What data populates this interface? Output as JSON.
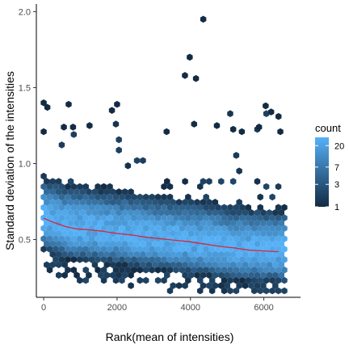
{
  "chart_data": {
    "type": "hexbin",
    "xlabel": "Rank(mean of intensities)",
    "ylabel": "Standard deviation of the intensities",
    "xlim": [
      -200,
      7000
    ],
    "ylim": [
      0.12,
      2.05
    ],
    "x_ticks": [
      {
        "value": 0,
        "label": "0"
      },
      {
        "value": 2000,
        "label": "2000"
      },
      {
        "value": 4000,
        "label": "4000"
      },
      {
        "value": 6000,
        "label": "6000"
      }
    ],
    "y_ticks": [
      {
        "value": 0.5,
        "label": "0.5"
      },
      {
        "value": 1.0,
        "label": "1.0"
      },
      {
        "value": 1.5,
        "label": "1.5"
      },
      {
        "value": 2.0,
        "label": "2.0"
      }
    ],
    "grid": false,
    "x_range_of_data": [
      0,
      6600
    ],
    "legend": {
      "title": "count",
      "placement": "right",
      "scale": "log",
      "low_color": "#132b43",
      "high_color": "#56b1f7",
      "breaks": [
        {
          "value": 20,
          "label": "20"
        },
        {
          "value": 7,
          "label": "7"
        },
        {
          "value": 3,
          "label": "3"
        },
        {
          "value": 1,
          "label": "1"
        }
      ],
      "range": [
        1,
        30
      ]
    },
    "trend_line": {
      "color": "#d7263d",
      "x": [
        0,
        300,
        600,
        900,
        1200,
        1600,
        2000,
        2400,
        2800,
        3200,
        3600,
        4000,
        4400,
        4800,
        5200,
        5600,
        6000,
        6400
      ],
      "y": [
        0.64,
        0.61,
        0.585,
        0.57,
        0.565,
        0.555,
        0.54,
        0.53,
        0.515,
        0.505,
        0.495,
        0.485,
        0.47,
        0.455,
        0.445,
        0.43,
        0.425,
        0.42
      ]
    },
    "outliers": [
      {
        "x": 4350,
        "y": 1.95
      },
      {
        "x": 3980,
        "y": 1.7
      },
      {
        "x": 3850,
        "y": 1.58
      },
      {
        "x": 4150,
        "y": 1.56
      },
      {
        "x": 0,
        "y": 1.4
      },
      {
        "x": 100,
        "y": 1.37
      },
      {
        "x": 680,
        "y": 1.39
      },
      {
        "x": 2000,
        "y": 1.39
      },
      {
        "x": 1860,
        "y": 1.35
      },
      {
        "x": 6050,
        "y": 1.38
      },
      {
        "x": 6200,
        "y": 1.34
      },
      {
        "x": 6400,
        "y": 1.31
      },
      {
        "x": 4720,
        "y": 1.25
      },
      {
        "x": 1250,
        "y": 1.25
      },
      {
        "x": 5870,
        "y": 1.24
      },
      {
        "x": 5400,
        "y": 1.21
      },
      {
        "x": 3350,
        "y": 1.21
      },
      {
        "x": 6450,
        "y": 1.21
      },
      {
        "x": 550,
        "y": 1.24
      },
      {
        "x": 800,
        "y": 1.24
      },
      {
        "x": 0,
        "y": 1.21
      }
    ]
  }
}
